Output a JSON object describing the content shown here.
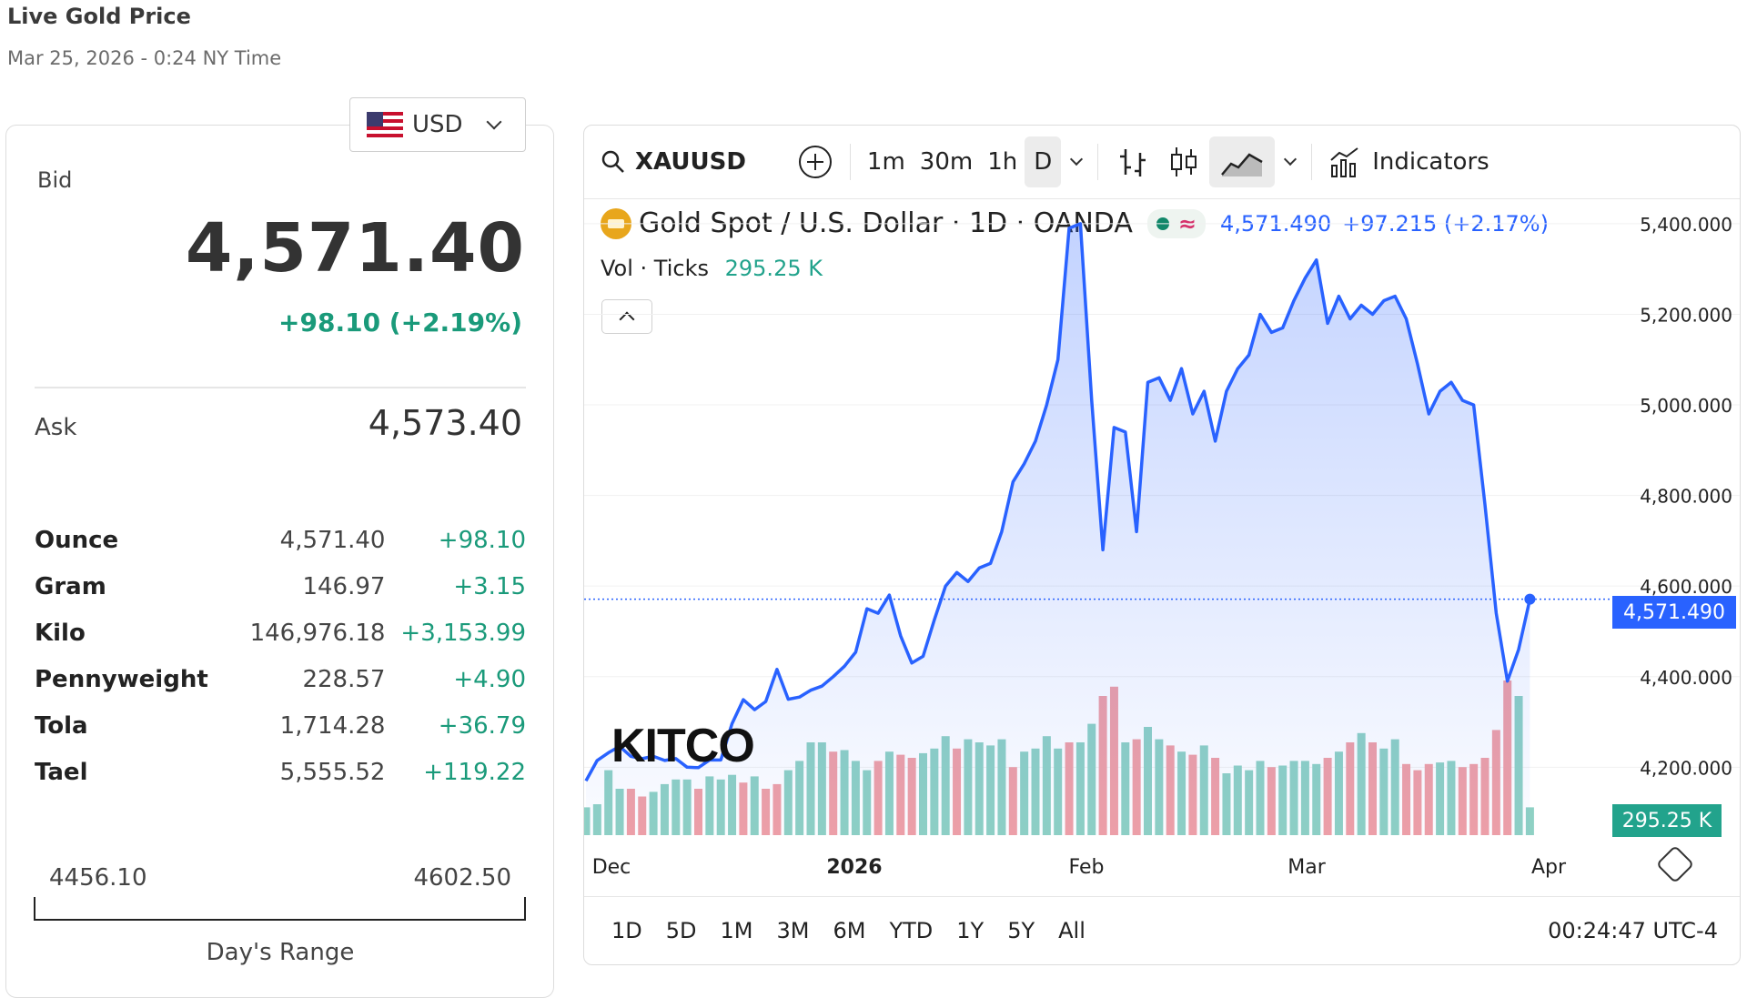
{
  "header": {
    "title": "Live Gold Price",
    "timestamp": "Mar 25, 2026 - 0:24 NY Time"
  },
  "currency": {
    "code": "USD"
  },
  "quote": {
    "bid_label": "Bid",
    "bid": "4,571.40",
    "change": "+98.10 (+2.19%)",
    "ask_label": "Ask",
    "ask": "4,573.40"
  },
  "units": [
    {
      "name": "Ounce",
      "value": "4,571.40",
      "change": "+98.10"
    },
    {
      "name": "Gram",
      "value": "146.97",
      "change": "+3.15"
    },
    {
      "name": "Kilo",
      "value": "146,976.18",
      "change": "+3,153.99"
    },
    {
      "name": "Pennyweight",
      "value": "228.57",
      "change": "+4.90"
    },
    {
      "name": "Tola",
      "value": "1,714.28",
      "change": "+36.79"
    },
    {
      "name": "Tael",
      "value": "5,555.52",
      "change": "+119.22"
    }
  ],
  "day_range": {
    "low": "4456.10",
    "high": "4602.50",
    "label": "Day's Range"
  },
  "toolbar": {
    "symbol": "XAUUSD",
    "intervals": [
      "1m",
      "30m",
      "1h",
      "D"
    ],
    "indicators_label": "Indicators"
  },
  "legend": {
    "name": "Gold Spot / U.S. Dollar · 1D · OANDA",
    "last": "4,571.490",
    "change": "+97.215 (+2.17%)",
    "vol_label": "Vol · Ticks",
    "vol_value": "295.25 K"
  },
  "logo": {
    "text": "KITCO"
  },
  "ranges": [
    "1D",
    "5D",
    "1M",
    "3M",
    "6M",
    "YTD",
    "1Y",
    "5Y",
    "All"
  ],
  "clock": "00:24:47 UTC-4",
  "colors": {
    "line": "#2962ff",
    "up_vol": "#8fd1c4",
    "down_vol": "#f0a0a6",
    "green": "#1a9a7a"
  },
  "chart_data": {
    "type": "line",
    "y_ticks": [
      "5,400.000",
      "5,200.000",
      "5,000.000",
      "4,800.000",
      "4,600.000",
      "4,400.000",
      "4,200.000"
    ],
    "x_ticks": [
      "Dec",
      "2026",
      "Feb",
      "Mar",
      "Apr"
    ],
    "ylim": [
      4050,
      5440
    ],
    "last_price_label": "4,571.490",
    "last_volume_label": "295.25 K",
    "price": [
      4170,
      4215,
      4232,
      4246,
      4224,
      4219,
      4224,
      4215,
      4219,
      4200,
      4199,
      4216,
      4216,
      4296,
      4349,
      4327,
      4345,
      4416,
      4350,
      4355,
      4370,
      4379,
      4400,
      4423,
      4454,
      4550,
      4540,
      4580,
      4490,
      4430,
      4445,
      4525,
      4600,
      4630,
      4610,
      4640,
      4650,
      4720,
      4830,
      4870,
      4920,
      5000,
      5100,
      5390,
      5400,
      5010,
      4680,
      4950,
      4940,
      4720,
      5050,
      5060,
      5010,
      5080,
      4980,
      5030,
      4920,
      5030,
      5080,
      5110,
      5200,
      5160,
      5170,
      5230,
      5280,
      5320,
      5180,
      5240,
      5190,
      5220,
      5200,
      5230,
      5240,
      5190,
      5090,
      4980,
      5030,
      5050,
      5010,
      5000,
      4780,
      4540,
      4390,
      4460,
      4571
    ],
    "volume": [
      18,
      20,
      42,
      30,
      30,
      25,
      28,
      33,
      36,
      36,
      30,
      38,
      36,
      39,
      34,
      38,
      30,
      33,
      42,
      48,
      60,
      60,
      54,
      55,
      48,
      42,
      48,
      54,
      52,
      50,
      53,
      56,
      64,
      56,
      62,
      60,
      58,
      62,
      44,
      54,
      56,
      64,
      56,
      60,
      60,
      72,
      90,
      96,
      60,
      62,
      70,
      62,
      58,
      54,
      52,
      58,
      50,
      40,
      45,
      42,
      48,
      44,
      45,
      48,
      48,
      46,
      50,
      54,
      60,
      66,
      60,
      56,
      62,
      46,
      42,
      46,
      47,
      48,
      44,
      46,
      50,
      68,
      100,
      90,
      18
    ],
    "volume_up": [
      1,
      1,
      1,
      1,
      0,
      0,
      1,
      1,
      1,
      1,
      0,
      1,
      1,
      1,
      0,
      1,
      0,
      0,
      1,
      1,
      1,
      1,
      0,
      1,
      1,
      1,
      0,
      1,
      0,
      0,
      1,
      1,
      1,
      0,
      1,
      1,
      1,
      1,
      0,
      1,
      1,
      1,
      1,
      0,
      1,
      1,
      0,
      0,
      1,
      0,
      1,
      1,
      0,
      1,
      0,
      1,
      0,
      1,
      1,
      1,
      1,
      0,
      1,
      1,
      1,
      1,
      0,
      1,
      0,
      1,
      0,
      1,
      1,
      0,
      0,
      0,
      1,
      1,
      0,
      0,
      0,
      0,
      0,
      1,
      1
    ]
  }
}
